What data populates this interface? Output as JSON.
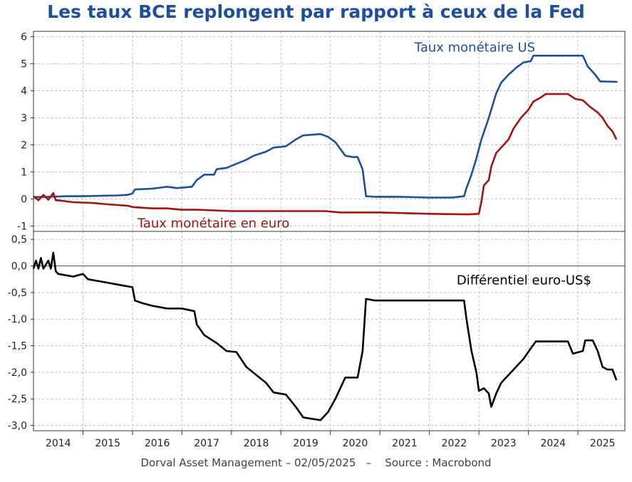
{
  "title": "Les taux BCE replongent par rapport à ceux de la Fed",
  "footer": "Dorval Asset Management – 02/05/2025   –    Source : Macrobond",
  "colors": {
    "us": "#1f4e9c",
    "euro": "#a01414",
    "diff": "#000000",
    "title": "#1f4e9c"
  },
  "chart_data": [
    {
      "type": "line",
      "ylim": [
        -1.2,
        6.2
      ],
      "yticks": [
        -1,
        0,
        1,
        2,
        3,
        4,
        5,
        6
      ],
      "ytick_labels": [
        "-1",
        "0",
        "1",
        "2",
        "3",
        "4",
        "5",
        "6"
      ],
      "grid": true,
      "series": [
        {
          "name": "Taux monétaire US",
          "color": "#1f4e9c",
          "points": [
            [
              2013.5,
              0.07
            ],
            [
              2013.8,
              0.08
            ],
            [
              2014.2,
              0.1
            ],
            [
              2014.5,
              0.1
            ],
            [
              2014.9,
              0.12
            ],
            [
              2015.2,
              0.13
            ],
            [
              2015.4,
              0.15
            ],
            [
              2015.5,
              0.2
            ],
            [
              2015.55,
              0.35
            ],
            [
              2015.9,
              0.38
            ],
            [
              2016.2,
              0.45
            ],
            [
              2016.4,
              0.4
            ],
            [
              2016.7,
              0.45
            ],
            [
              2016.8,
              0.7
            ],
            [
              2016.95,
              0.9
            ],
            [
              2017.15,
              0.9
            ],
            [
              2017.2,
              1.1
            ],
            [
              2017.4,
              1.15
            ],
            [
              2017.6,
              1.3
            ],
            [
              2017.8,
              1.45
            ],
            [
              2017.95,
              1.6
            ],
            [
              2018.2,
              1.75
            ],
            [
              2018.35,
              1.9
            ],
            [
              2018.6,
              1.95
            ],
            [
              2018.8,
              2.2
            ],
            [
              2018.95,
              2.35
            ],
            [
              2019.3,
              2.4
            ],
            [
              2019.45,
              2.3
            ],
            [
              2019.6,
              2.1
            ],
            [
              2019.7,
              1.85
            ],
            [
              2019.8,
              1.6
            ],
            [
              2019.95,
              1.55
            ],
            [
              2020.05,
              1.55
            ],
            [
              2020.15,
              1.1
            ],
            [
              2020.22,
              0.1
            ],
            [
              2020.4,
              0.08
            ],
            [
              2020.9,
              0.08
            ],
            [
              2021.5,
              0.05
            ],
            [
              2021.95,
              0.05
            ],
            [
              2022.2,
              0.1
            ],
            [
              2022.25,
              0.4
            ],
            [
              2022.35,
              0.9
            ],
            [
              2022.45,
              1.5
            ],
            [
              2022.55,
              2.2
            ],
            [
              2022.7,
              3.0
            ],
            [
              2022.85,
              3.9
            ],
            [
              2022.95,
              4.3
            ],
            [
              2023.1,
              4.6
            ],
            [
              2023.25,
              4.85
            ],
            [
              2023.4,
              5.05
            ],
            [
              2023.55,
              5.1
            ],
            [
              2023.6,
              5.3
            ],
            [
              2024.3,
              5.3
            ],
            [
              2024.6,
              5.3
            ],
            [
              2024.7,
              4.9
            ],
            [
              2024.85,
              4.6
            ],
            [
              2024.95,
              4.35
            ],
            [
              2025.3,
              4.33
            ]
          ]
        },
        {
          "name": "Taux monétaire en euro",
          "color": "#a01414",
          "points": [
            [
              2013.5,
              0.1
            ],
            [
              2013.6,
              -0.05
            ],
            [
              2013.7,
              0.15
            ],
            [
              2013.8,
              -0.03
            ],
            [
              2013.9,
              0.22
            ],
            [
              2013.95,
              -0.05
            ],
            [
              2014.0,
              -0.05
            ],
            [
              2014.3,
              -0.12
            ],
            [
              2014.7,
              -0.15
            ],
            [
              2015.0,
              -0.2
            ],
            [
              2015.4,
              -0.25
            ],
            [
              2015.5,
              -0.3
            ],
            [
              2015.9,
              -0.35
            ],
            [
              2016.2,
              -0.35
            ],
            [
              2016.5,
              -0.4
            ],
            [
              2016.8,
              -0.4
            ],
            [
              2017.5,
              -0.45
            ],
            [
              2018.5,
              -0.45
            ],
            [
              2019.0,
              -0.45
            ],
            [
              2019.4,
              -0.45
            ],
            [
              2019.7,
              -0.5
            ],
            [
              2020.5,
              -0.5
            ],
            [
              2021.5,
              -0.55
            ],
            [
              2022.3,
              -0.57
            ],
            [
              2022.5,
              -0.55
            ],
            [
              2022.55,
              -0.1
            ],
            [
              2022.6,
              0.5
            ],
            [
              2022.7,
              0.7
            ],
            [
              2022.75,
              1.2
            ],
            [
              2022.85,
              1.7
            ],
            [
              2022.95,
              1.9
            ],
            [
              2023.1,
              2.2
            ],
            [
              2023.2,
              2.6
            ],
            [
              2023.35,
              3.0
            ],
            [
              2023.5,
              3.3
            ],
            [
              2023.6,
              3.6
            ],
            [
              2023.75,
              3.75
            ],
            [
              2023.85,
              3.88
            ],
            [
              2024.3,
              3.88
            ],
            [
              2024.45,
              3.7
            ],
            [
              2024.6,
              3.65
            ],
            [
              2024.75,
              3.4
            ],
            [
              2024.9,
              3.2
            ],
            [
              2025.0,
              3.0
            ],
            [
              2025.1,
              2.7
            ],
            [
              2025.2,
              2.5
            ],
            [
              2025.28,
              2.2
            ]
          ]
        }
      ],
      "annotations": [
        {
          "text": "Taux monétaire US",
          "color": "#1f4e9c"
        },
        {
          "text": "Taux monétaire en euro",
          "color": "#a01414"
        }
      ]
    },
    {
      "type": "line",
      "ylim": [
        -3.1,
        0.65
      ],
      "yticks": [
        0.5,
        0,
        -0.5,
        -1,
        -1.5,
        -2,
        -2.5,
        -3
      ],
      "ytick_labels": [
        "0,5",
        "0,0",
        "-0,5",
        "-1,0",
        "-1,5",
        "-2,0",
        "-2,5",
        "-3,0"
      ],
      "grid": true,
      "zero_line": true,
      "series": [
        {
          "name": "Différentiel euro-US$",
          "color": "#000000",
          "points": [
            [
              2013.5,
              -0.05
            ],
            [
              2013.55,
              0.1
            ],
            [
              2013.6,
              -0.05
            ],
            [
              2013.65,
              0.15
            ],
            [
              2013.7,
              -0.05
            ],
            [
              2013.8,
              0.1
            ],
            [
              2013.85,
              -0.05
            ],
            [
              2013.9,
              0.25
            ],
            [
              2013.95,
              -0.1
            ],
            [
              2014.0,
              -0.15
            ],
            [
              2014.3,
              -0.2
            ],
            [
              2014.5,
              -0.15
            ],
            [
              2014.6,
              -0.25
            ],
            [
              2014.9,
              -0.3
            ],
            [
              2015.2,
              -0.35
            ],
            [
              2015.5,
              -0.4
            ],
            [
              2015.55,
              -0.65
            ],
            [
              2015.7,
              -0.7
            ],
            [
              2015.9,
              -0.75
            ],
            [
              2016.2,
              -0.8
            ],
            [
              2016.5,
              -0.8
            ],
            [
              2016.75,
              -0.85
            ],
            [
              2016.8,
              -1.1
            ],
            [
              2016.95,
              -1.3
            ],
            [
              2017.2,
              -1.45
            ],
            [
              2017.4,
              -1.6
            ],
            [
              2017.6,
              -1.62
            ],
            [
              2017.8,
              -1.9
            ],
            [
              2018.0,
              -2.05
            ],
            [
              2018.2,
              -2.2
            ],
            [
              2018.35,
              -2.38
            ],
            [
              2018.6,
              -2.42
            ],
            [
              2018.8,
              -2.65
            ],
            [
              2018.95,
              -2.85
            ],
            [
              2019.3,
              -2.9
            ],
            [
              2019.45,
              -2.75
            ],
            [
              2019.6,
              -2.5
            ],
            [
              2019.7,
              -2.3
            ],
            [
              2019.8,
              -2.1
            ],
            [
              2020.05,
              -2.1
            ],
            [
              2020.15,
              -1.6
            ],
            [
              2020.22,
              -0.62
            ],
            [
              2020.4,
              -0.65
            ],
            [
              2021.0,
              -0.65
            ],
            [
              2021.5,
              -0.65
            ],
            [
              2022.0,
              -0.65
            ],
            [
              2022.2,
              -0.65
            ],
            [
              2022.25,
              -1.0
            ],
            [
              2022.35,
              -1.6
            ],
            [
              2022.45,
              -2.0
            ],
            [
              2022.5,
              -2.35
            ],
            [
              2022.6,
              -2.3
            ],
            [
              2022.7,
              -2.4
            ],
            [
              2022.75,
              -2.65
            ],
            [
              2022.85,
              -2.4
            ],
            [
              2022.95,
              -2.2
            ],
            [
              2023.1,
              -2.05
            ],
            [
              2023.25,
              -1.9
            ],
            [
              2023.4,
              -1.75
            ],
            [
              2023.55,
              -1.55
            ],
            [
              2023.65,
              -1.42
            ],
            [
              2024.1,
              -1.42
            ],
            [
              2024.3,
              -1.42
            ],
            [
              2024.4,
              -1.65
            ],
            [
              2024.6,
              -1.6
            ],
            [
              2024.65,
              -1.4
            ],
            [
              2024.8,
              -1.4
            ],
            [
              2024.9,
              -1.6
            ],
            [
              2025.0,
              -1.9
            ],
            [
              2025.1,
              -1.95
            ],
            [
              2025.2,
              -1.95
            ],
            [
              2025.28,
              -2.15
            ]
          ]
        }
      ],
      "annotations": [
        {
          "text": "Différentiel euro-US$",
          "color": "#000000"
        }
      ]
    }
  ],
  "x_axis": {
    "range": [
      2013.5,
      2025.45
    ],
    "labels": [
      "2014",
      "2015",
      "2016",
      "2017",
      "2018",
      "2019",
      "2020",
      "2021",
      "2022",
      "2023",
      "2024",
      "2025"
    ],
    "label_positions": [
      2014,
      2015,
      2016,
      2017,
      2018,
      2019,
      2020,
      2021,
      2022,
      2023,
      2024,
      2025
    ]
  }
}
